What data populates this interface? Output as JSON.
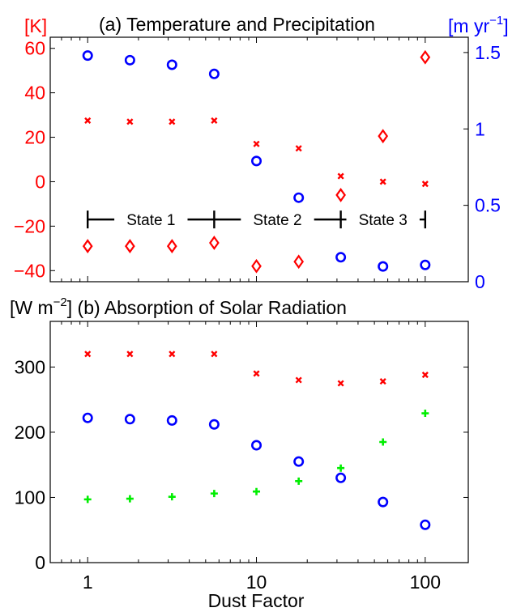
{
  "colors": {
    "red": "#ff0000",
    "blue": "#0000ff",
    "green": "#00ee00",
    "black": "#000000"
  },
  "chart_data": [
    {
      "type": "scatter",
      "title": "(a) Temperature and Precipitation",
      "xscale": "log",
      "xlim": [
        0.6,
        180
      ],
      "ylabel_left": "[K]",
      "ylabel_right_base": "[m yr",
      "ylabel_right_exp": "−1",
      "ylabel_right_close": "]",
      "ylim_left": [
        -45,
        65
      ],
      "ylim_right": [
        0,
        1.6
      ],
      "yticks_left": [
        "60",
        "40",
        "20",
        "0",
        "−20",
        "−40"
      ],
      "yticks_left_values": [
        60,
        40,
        20,
        0,
        -20,
        -40
      ],
      "yticks_right": [
        "1.5",
        "1",
        "0.5",
        "0"
      ],
      "yticks_right_values": [
        1.5,
        1,
        0.5,
        0
      ],
      "x": [
        1,
        1.78,
        3.16,
        5.62,
        10,
        17.8,
        31.6,
        56.2,
        100
      ],
      "series": [
        {
          "axis": "left",
          "marker": "x",
          "color": "#ff0000",
          "values": [
            27.5,
            27,
            27,
            27.5,
            17,
            15,
            2.5,
            0,
            -1
          ]
        },
        {
          "axis": "left",
          "marker": "diamond",
          "color": "#ff0000",
          "values": [
            -29,
            -29,
            -29,
            -27.5,
            -38,
            -36,
            -6,
            20.5,
            56
          ]
        },
        {
          "axis": "right",
          "marker": "circle",
          "color": "#0000ff",
          "values": [
            1.48,
            1.45,
            1.42,
            1.36,
            0.79,
            0.55,
            0.16,
            0.1,
            0.11
          ]
        }
      ],
      "states": {
        "labels": [
          "State 1",
          "State 2",
          "State 3"
        ],
        "boundaries": [
          1,
          5.62,
          31.6,
          100
        ],
        "y_value": -17
      }
    },
    {
      "type": "scatter",
      "title_prefix": "[W m",
      "title_exp": "−2",
      "title_rest": "]  (b) Absorption of Solar Radiation",
      "xscale": "log",
      "xlim": [
        0.6,
        180
      ],
      "ylim": [
        0,
        370
      ],
      "yticks": [
        "300",
        "200",
        "100",
        "0"
      ],
      "yticks_values": [
        300,
        200,
        100,
        0
      ],
      "xticks": [
        "1",
        "10",
        "100"
      ],
      "xticks_values": [
        1,
        10,
        100
      ],
      "xlabel": "Dust Factor",
      "x": [
        1,
        1.78,
        3.16,
        5.62,
        10,
        17.8,
        31.6,
        56.2,
        100
      ],
      "series": [
        {
          "marker": "x",
          "color": "#ff0000",
          "values": [
            320,
            320,
            320,
            320,
            290,
            280,
            275,
            278,
            288
          ]
        },
        {
          "marker": "circle",
          "color": "#0000ff",
          "values": [
            222,
            220,
            218,
            212,
            180,
            155,
            130,
            93,
            58
          ]
        },
        {
          "marker": "plus",
          "color": "#00ee00",
          "values": [
            97,
            98,
            101,
            106,
            109,
            125,
            145,
            185,
            229
          ]
        }
      ]
    }
  ]
}
